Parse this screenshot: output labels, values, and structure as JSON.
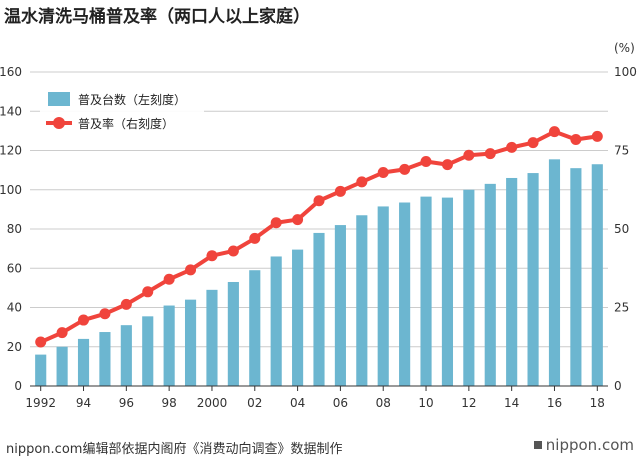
{
  "header": {
    "title": "温水清洗马桶普及率（两口人以上家庭）"
  },
  "footer": {
    "source": "nippon.com编辑部依据内阁府《消费动向调查》数据制作",
    "brand": "nippon.com"
  },
  "colors": {
    "bar": "#6cb6d0",
    "line": "#f0443c",
    "grid": "#cccccc",
    "axis": "#333333"
  },
  "chart_data": {
    "type": "bar+line",
    "title": "温水清洗马桶普及率（两口人以上家庭）",
    "categories": [
      1992,
      1993,
      1994,
      1995,
      1996,
      1997,
      1998,
      1999,
      2000,
      2001,
      2002,
      2003,
      2004,
      2005,
      2006,
      2007,
      2008,
      2009,
      2010,
      2011,
      2012,
      2013,
      2014,
      2015,
      2016,
      2017,
      2018
    ],
    "x_tick_labels": [
      {
        "year": 1992,
        "label": "1992"
      },
      {
        "year": 1994,
        "label": "94"
      },
      {
        "year": 1996,
        "label": "96"
      },
      {
        "year": 1998,
        "label": "98"
      },
      {
        "year": 2000,
        "label": "2000"
      },
      {
        "year": 2002,
        "label": "02"
      },
      {
        "year": 2004,
        "label": "04"
      },
      {
        "year": 2006,
        "label": "06"
      },
      {
        "year": 2008,
        "label": "08"
      },
      {
        "year": 2010,
        "label": "10"
      },
      {
        "year": 2012,
        "label": "12"
      },
      {
        "year": 2014,
        "label": "14"
      },
      {
        "year": 2016,
        "label": "16"
      },
      {
        "year": 2018,
        "label": "18"
      }
    ],
    "y_left": {
      "min": 0,
      "max": 160,
      "ticks": [
        "0",
        "20",
        "40",
        "60",
        "80",
        "100",
        "120",
        "140",
        "160"
      ]
    },
    "y_right": {
      "min": 0,
      "max": 100,
      "unit": "(%)",
      "ticks": [
        "0",
        "25",
        "50",
        "75",
        "100"
      ]
    },
    "series": [
      {
        "name": "普及台数（左刻度）",
        "type": "bar",
        "axis": "left",
        "values": [
          16,
          20,
          24,
          27.5,
          31,
          35.5,
          41,
          44,
          49,
          53,
          59,
          66,
          69.5,
          78,
          82,
          87,
          91.5,
          93.5,
          96.5,
          96,
          100,
          103,
          106,
          108.5,
          115.5,
          111,
          113
        ]
      },
      {
        "name": "普及率（右刻度）",
        "type": "line",
        "axis": "right",
        "values": [
          14,
          17,
          21,
          23,
          26,
          30,
          34,
          37,
          41.5,
          43,
          47,
          52,
          53,
          59,
          62,
          65,
          68,
          69,
          71.5,
          70.5,
          73.5,
          74,
          76,
          77.5,
          81,
          78.5,
          79.5
        ]
      }
    ],
    "legend": {
      "position": "top-left"
    },
    "grid": true
  }
}
